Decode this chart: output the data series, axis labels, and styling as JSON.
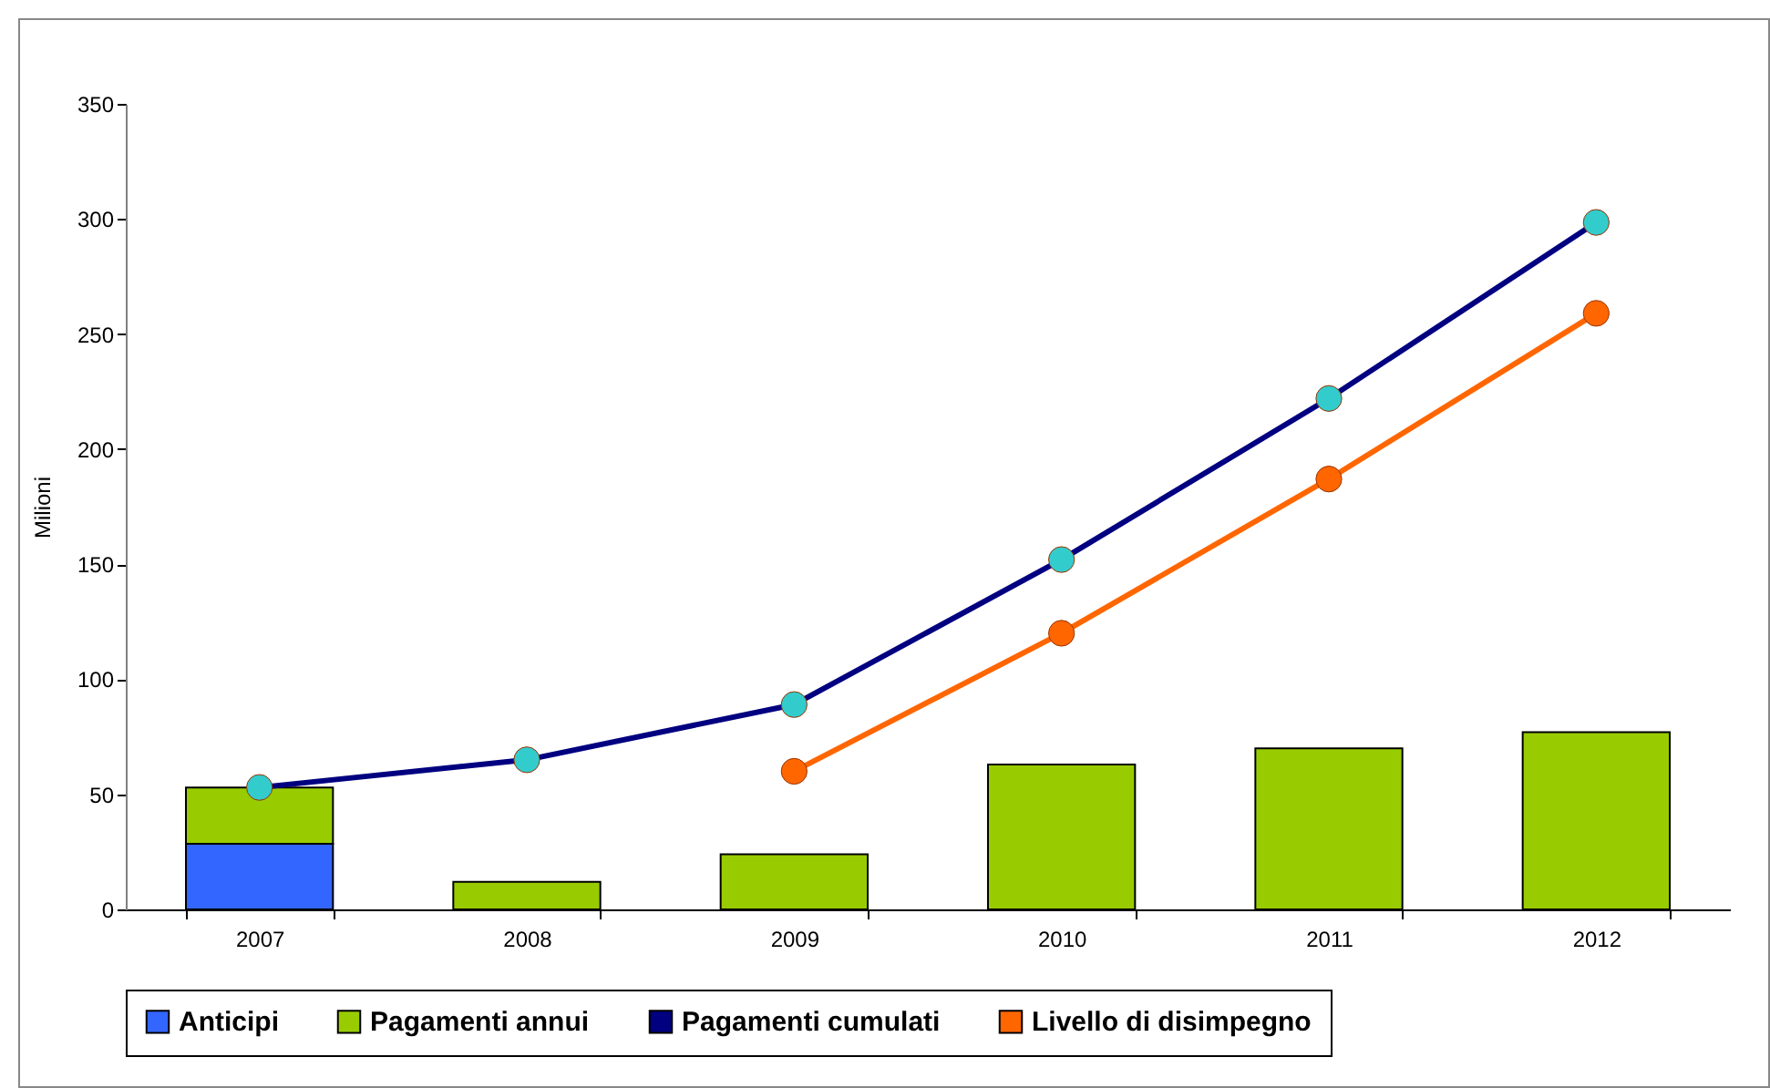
{
  "chart_data": {
    "type": "bar",
    "stacked": true,
    "ylabel": "Milioni",
    "categories": [
      "2007",
      "2008",
      "2009",
      "2010",
      "2011",
      "2012"
    ],
    "ylim": [
      0,
      350
    ],
    "yticks": [
      0,
      50,
      100,
      150,
      200,
      250,
      300,
      350
    ],
    "grid": false,
    "legend": "bottom",
    "marker": "circle",
    "series": [
      {
        "name": "Anticipi",
        "color": "#3366ff",
        "values": [
          28.5,
          null,
          null,
          null,
          null,
          null
        ]
      },
      {
        "name": "Pagamenti annui",
        "color": "#99cc00",
        "values": [
          24.5,
          12,
          24,
          63,
          70,
          77
        ]
      },
      {
        "name": "Pagamenti cumulati",
        "type": "line",
        "color": "#000080",
        "colors": [
          "#33cccc",
          "#33cccc",
          "#33cccc",
          "#33cccc",
          "#33cccc",
          "#33cccc"
        ],
        "values": [
          53,
          65,
          89,
          152,
          222,
          298.5
        ]
      },
      {
        "name": "Livello di disimpegno",
        "type": "line",
        "color": "#ff6600",
        "colors": [
          null,
          null,
          "#ff6600",
          "#ff6600",
          "#ff6600",
          "#ff6600"
        ],
        "values": [
          null,
          null,
          60,
          120,
          187,
          259
        ]
      }
    ]
  }
}
